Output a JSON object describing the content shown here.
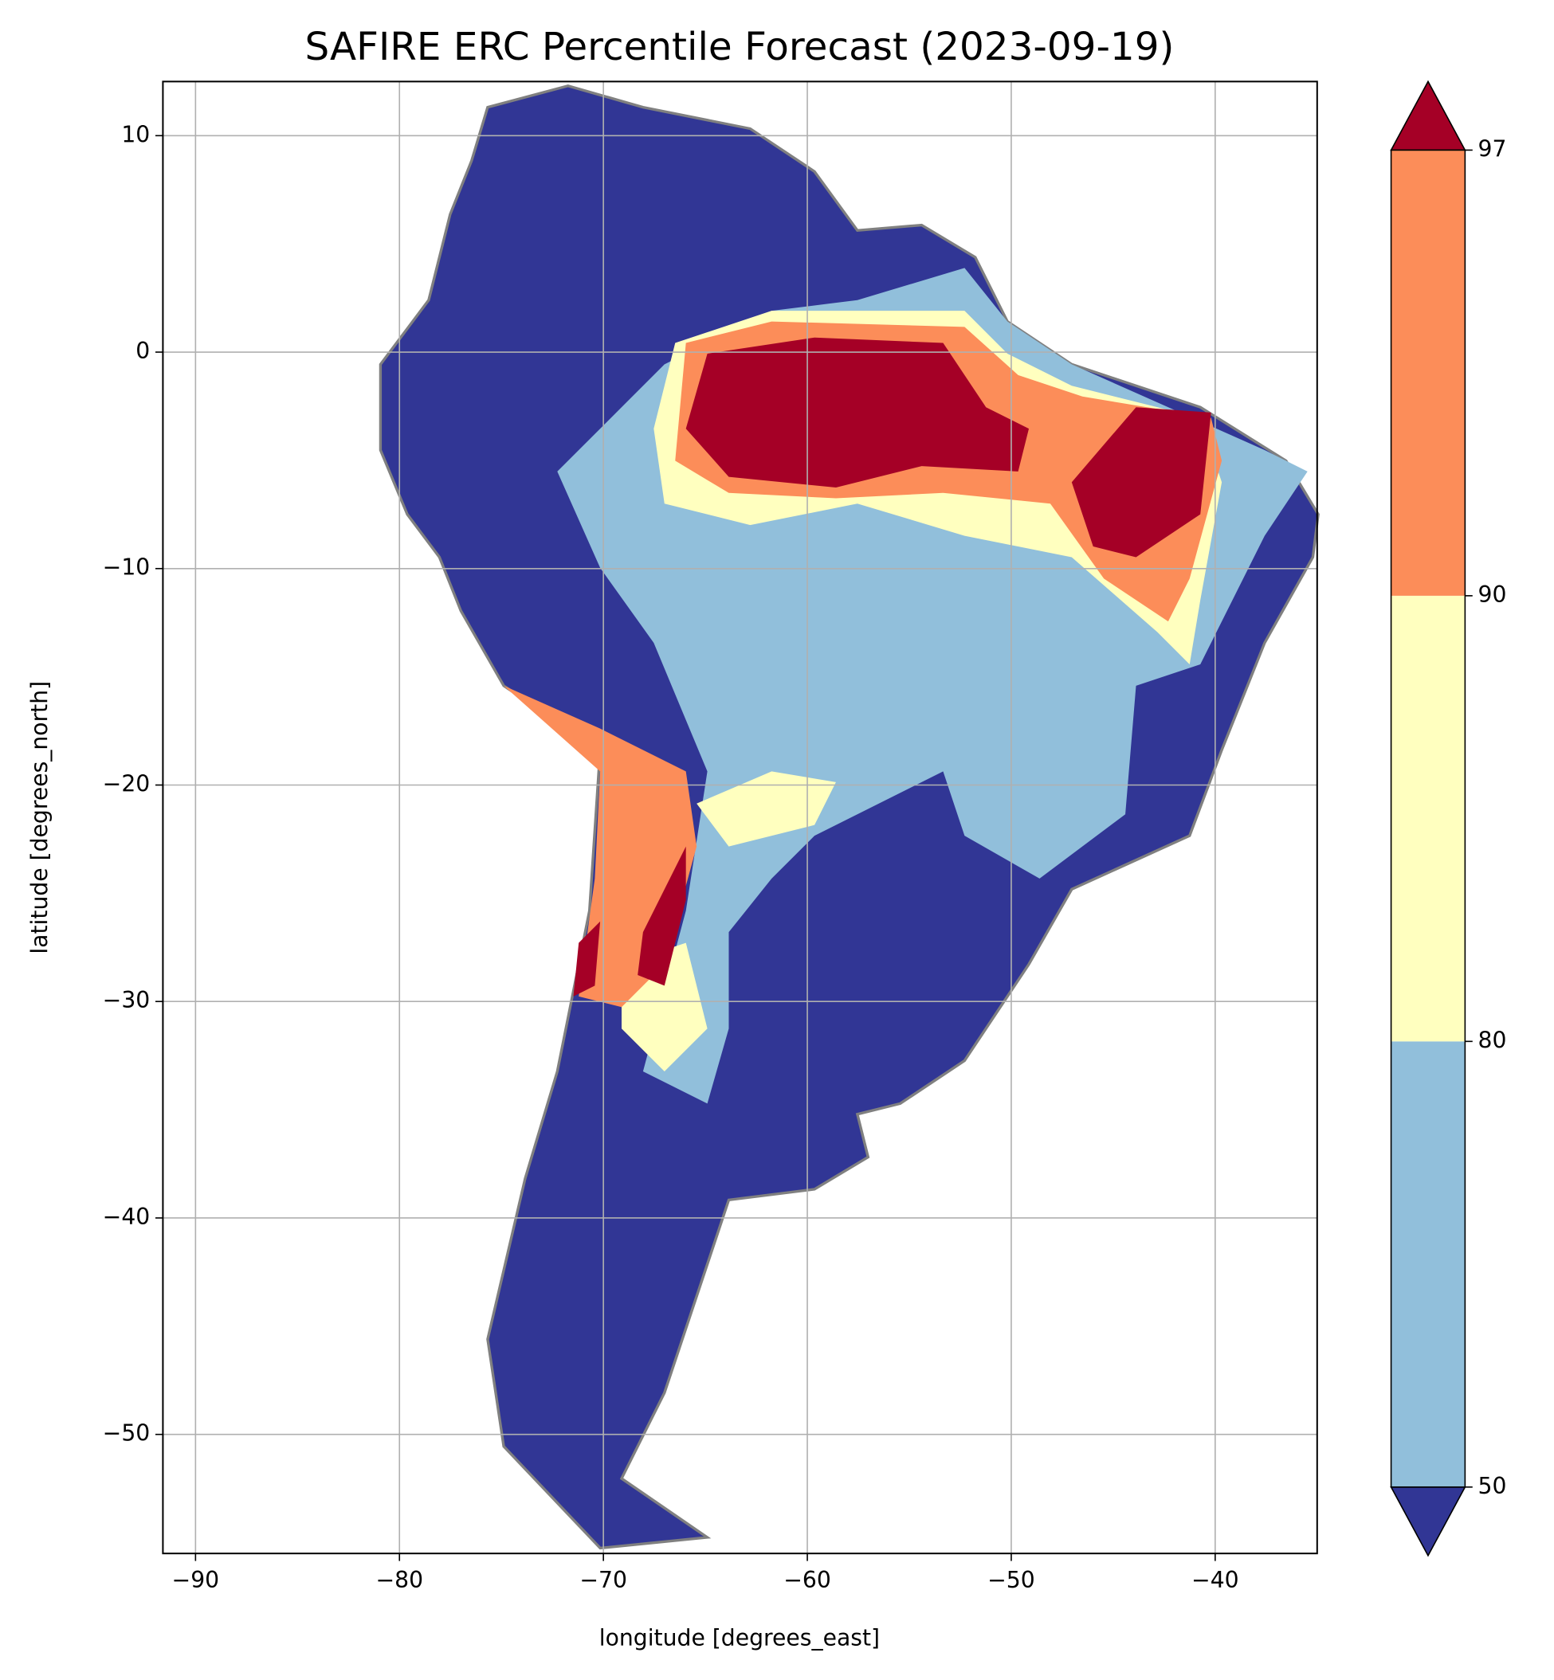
{
  "chart_data": {
    "type": "map",
    "title": "SAFIRE ERC Percentile Forecast (2023-09-19)",
    "x_label": "longitude [degrees_east]",
    "y_label": "latitude [degrees_north]",
    "xlim": [
      -91.6,
      -35
    ],
    "ylim": [
      -55.5,
      12.5
    ],
    "xticks": [
      {
        "value": -90,
        "label": "−90"
      },
      {
        "value": -80,
        "label": "−80"
      },
      {
        "value": -70,
        "label": "−70"
      },
      {
        "value": -60,
        "label": "−60"
      },
      {
        "value": -50,
        "label": "−50"
      },
      {
        "value": -40,
        "label": "−40"
      }
    ],
    "yticks": [
      10,
      0,
      {
        "value": -10,
        "label": "−10"
      },
      {
        "value": -20,
        "label": "−20"
      },
      {
        "value": -30,
        "label": "−30"
      },
      {
        "value": -40,
        "label": "−40"
      },
      {
        "value": -50,
        "label": "−50"
      }
    ],
    "grid": true,
    "colorbar": {
      "ticks": [
        50,
        80,
        90,
        97
      ],
      "colors": [
        "#313695",
        "#91bfdb",
        "#ffffbf",
        "#fc8d59",
        "#a50026"
      ],
      "extend": "both"
    }
  }
}
